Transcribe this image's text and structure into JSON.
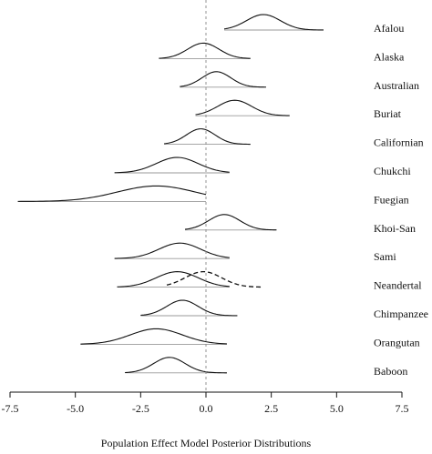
{
  "chart_data": {
    "type": "density-ridgeline",
    "xlabel": "Population Effect Model Posterior Distributions",
    "xlim": [
      -7.5,
      7.5
    ],
    "xticks": [
      -7.5,
      -5.0,
      -2.5,
      0.0,
      2.5,
      5.0,
      7.5
    ],
    "xtick_labels": [
      "-7.5",
      "-5.0",
      "-2.5",
      "0.0",
      "2.5",
      "5.0",
      "7.5"
    ],
    "reference_line": 0.0,
    "series": [
      {
        "name": "Afalou",
        "mode": 2.2,
        "lo": 0.7,
        "hi": 4.5,
        "sd": 0.65
      },
      {
        "name": "Alaska",
        "mode": -0.1,
        "lo": -1.8,
        "hi": 1.7,
        "sd": 0.6
      },
      {
        "name": "Australian",
        "mode": 0.4,
        "lo": -1.0,
        "hi": 2.3,
        "sd": 0.55
      },
      {
        "name": "Buriat",
        "mode": 1.1,
        "lo": -0.4,
        "hi": 3.2,
        "sd": 0.65
      },
      {
        "name": "Californian",
        "mode": -0.2,
        "lo": -1.6,
        "hi": 1.7,
        "sd": 0.55
      },
      {
        "name": "Chukchi",
        "mode": -1.1,
        "lo": -3.5,
        "hi": 0.9,
        "sd": 0.8
      },
      {
        "name": "Fuegian",
        "mode": -1.9,
        "lo": -7.2,
        "hi": 0.0,
        "sd": 1.5
      },
      {
        "name": "Khoi-San",
        "mode": 0.7,
        "lo": -0.8,
        "hi": 2.7,
        "sd": 0.6
      },
      {
        "name": "Sami",
        "mode": -1.0,
        "lo": -3.5,
        "hi": 0.9,
        "sd": 0.8
      },
      {
        "name": "Neandertal",
        "mode": -1.1,
        "lo": -3.4,
        "hi": 0.9,
        "sd": 0.8,
        "dashed": {
          "mode": -0.1,
          "lo": -1.5,
          "hi": 2.1,
          "sd": 0.7
        }
      },
      {
        "name": "Chimpanzee",
        "mode": -0.9,
        "lo": -2.5,
        "hi": 1.2,
        "sd": 0.6
      },
      {
        "name": "Orangutan",
        "mode": -1.9,
        "lo": -4.8,
        "hi": 0.8,
        "sd": 1.0
      },
      {
        "name": "Baboon",
        "mode": -1.4,
        "lo": -3.1,
        "hi": 0.8,
        "sd": 0.6
      }
    ]
  }
}
